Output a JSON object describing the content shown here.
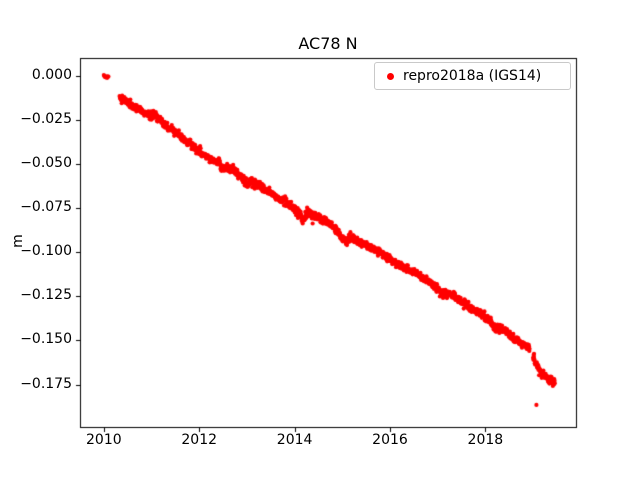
{
  "figure": {
    "background": "#ffffff"
  },
  "chart_data": {
    "type": "scatter",
    "title": "AC78 N",
    "xlabel": "",
    "ylabel": "m",
    "xlim": [
      2009.5,
      2019.9
    ],
    "ylim": [
      -0.199,
      0.01
    ],
    "grid": false,
    "legend_position": "upper right",
    "frame_color": "#000000",
    "xticks": [
      {
        "v": 2010,
        "label": "2010"
      },
      {
        "v": 2012,
        "label": "2012"
      },
      {
        "v": 2014,
        "label": "2014"
      },
      {
        "v": 2016,
        "label": "2016"
      },
      {
        "v": 2018,
        "label": "2018"
      }
    ],
    "yticks": [
      {
        "v": 0.0,
        "label": "0.000"
      },
      {
        "v": -0.025,
        "label": "−0.025"
      },
      {
        "v": -0.05,
        "label": "−0.050"
      },
      {
        "v": -0.075,
        "label": "−0.075"
      },
      {
        "v": -0.1,
        "label": "−0.100"
      },
      {
        "v": -0.125,
        "label": "−0.125"
      },
      {
        "v": -0.15,
        "label": "−0.150"
      },
      {
        "v": -0.175,
        "label": "−0.175"
      }
    ],
    "series": [
      {
        "name": "repro2018a (IGS14)",
        "color": "#ff0000",
        "marker": "dot",
        "point_radius": 2.1,
        "seed": 1337,
        "segments": [
          {
            "step": 0.012,
            "noise": 0.0005,
            "anchors": [
              [
                2010.0,
                0.0
              ],
              [
                2010.05,
                -0.0005
              ],
              [
                2010.1,
                -0.001
              ]
            ]
          },
          {
            "step": 0.0055,
            "noise": 0.0011,
            "anchors": [
              [
                2010.33,
                -0.0125
              ],
              [
                2010.42,
                -0.0135
              ],
              [
                2010.55,
                -0.016
              ],
              [
                2010.7,
                -0.0185
              ],
              [
                2010.85,
                -0.021
              ],
              [
                2010.95,
                -0.0225
              ],
              [
                2011.05,
                -0.0215
              ],
              [
                2011.15,
                -0.024
              ],
              [
                2011.25,
                -0.0275
              ],
              [
                2011.35,
                -0.029
              ],
              [
                2011.5,
                -0.0325
              ],
              [
                2011.65,
                -0.035
              ],
              [
                2011.8,
                -0.0385
              ],
              [
                2011.95,
                -0.042
              ],
              [
                2012.1,
                -0.045
              ],
              [
                2012.25,
                -0.0475
              ],
              [
                2012.4,
                -0.049
              ],
              [
                2012.5,
                -0.0525
              ],
              [
                2012.62,
                -0.0525
              ],
              [
                2012.75,
                -0.054
              ],
              [
                2012.9,
                -0.058
              ],
              [
                2013.0,
                -0.062
              ],
              [
                2013.08,
                -0.0595
              ],
              [
                2013.2,
                -0.0615
              ],
              [
                2013.35,
                -0.064
              ],
              [
                2013.5,
                -0.0665
              ],
              [
                2013.65,
                -0.069
              ],
              [
                2013.8,
                -0.0715
              ],
              [
                2013.95,
                -0.0745
              ],
              [
                2014.1,
                -0.078
              ],
              [
                2014.18,
                -0.082
              ],
              [
                2014.28,
                -0.0775
              ],
              [
                2014.4,
                -0.0795
              ],
              [
                2014.55,
                -0.081
              ],
              [
                2014.7,
                -0.0835
              ],
              [
                2014.85,
                -0.0865
              ],
              [
                2014.98,
                -0.0915
              ],
              [
                2015.08,
                -0.094
              ],
              [
                2015.18,
                -0.0915
              ],
              [
                2015.3,
                -0.0935
              ],
              [
                2015.45,
                -0.0955
              ],
              [
                2015.6,
                -0.0975
              ],
              [
                2015.75,
                -0.0995
              ],
              [
                2015.9,
                -0.102
              ],
              [
                2016.05,
                -0.105
              ],
              [
                2016.2,
                -0.1075
              ],
              [
                2016.35,
                -0.1095
              ],
              [
                2016.5,
                -0.1115
              ],
              [
                2016.65,
                -0.114
              ],
              [
                2016.8,
                -0.117
              ],
              [
                2016.95,
                -0.1195
              ],
              [
                2017.05,
                -0.1225
              ],
              [
                2017.15,
                -0.1235
              ],
              [
                2017.3,
                -0.124
              ],
              [
                2017.45,
                -0.127
              ],
              [
                2017.6,
                -0.13
              ],
              [
                2017.75,
                -0.1325
              ],
              [
                2017.9,
                -0.135
              ],
              [
                2018.0,
                -0.1365
              ],
              [
                2018.1,
                -0.139
              ],
              [
                2018.22,
                -0.1435
              ],
              [
                2018.32,
                -0.1425
              ],
              [
                2018.45,
                -0.1455
              ],
              [
                2018.6,
                -0.149
              ],
              [
                2018.75,
                -0.1515
              ],
              [
                2018.93,
                -0.155
              ]
            ]
          },
          {
            "step": 0.006,
            "noise": 0.0012,
            "anchors": [
              [
                2019.0,
                -0.16
              ],
              [
                2019.08,
                -0.1645
              ],
              [
                2019.16,
                -0.1685
              ],
              [
                2019.25,
                -0.1705
              ],
              [
                2019.33,
                -0.172
              ],
              [
                2019.4,
                -0.1725
              ],
              [
                2019.46,
                -0.173
              ]
            ]
          }
        ],
        "outliers": [
          [
            2019.02,
            -0.1575
          ],
          [
            2019.07,
            -0.1865
          ]
        ]
      }
    ]
  }
}
